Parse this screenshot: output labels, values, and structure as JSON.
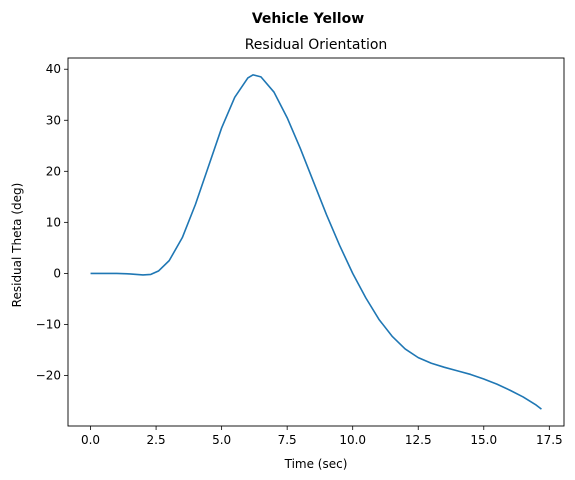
{
  "chart_data": {
    "type": "line",
    "suptitle": "Vehicle Yellow",
    "title": "Residual Orientation",
    "xlabel": "Time (sec)",
    "ylabel": "Residual Theta (deg)",
    "xlim": [
      -0.86,
      18.06
    ],
    "ylim": [
      -29.9,
      42.2
    ],
    "xticks": [
      0.0,
      2.5,
      5.0,
      7.5,
      10.0,
      12.5,
      15.0,
      17.5
    ],
    "xtick_labels": [
      "0.0",
      "2.5",
      "5.0",
      "7.5",
      "10.0",
      "12.5",
      "15.0",
      "17.5"
    ],
    "yticks": [
      -20,
      -10,
      0,
      10,
      20,
      30,
      40
    ],
    "ytick_labels": [
      "−20",
      "−10",
      "0",
      "10",
      "20",
      "30",
      "40"
    ],
    "grid": false,
    "color": "#1f77b4",
    "series": [
      {
        "x": [
          0.0,
          0.5,
          1.0,
          1.5,
          2.0,
          2.3,
          2.6,
          3.0,
          3.5,
          4.0,
          4.5,
          5.0,
          5.5,
          6.0,
          6.2,
          6.5,
          7.0,
          7.5,
          8.0,
          8.5,
          9.0,
          9.5,
          10.0,
          10.5,
          11.0,
          11.5,
          12.0,
          12.5,
          13.0,
          13.5,
          14.0,
          14.5,
          15.0,
          15.5,
          16.0,
          16.5,
          17.0,
          17.2
        ],
        "y": [
          0.0,
          0.0,
          0.0,
          -0.1,
          -0.3,
          -0.2,
          0.5,
          2.5,
          7.0,
          13.5,
          21.0,
          28.5,
          34.5,
          38.3,
          38.9,
          38.5,
          35.5,
          30.5,
          24.5,
          18.0,
          11.5,
          5.5,
          0.0,
          -4.8,
          -9.0,
          -12.3,
          -14.8,
          -16.5,
          -17.6,
          -18.4,
          -19.1,
          -19.8,
          -20.7,
          -21.7,
          -22.9,
          -24.2,
          -25.8,
          -26.6
        ]
      }
    ]
  }
}
